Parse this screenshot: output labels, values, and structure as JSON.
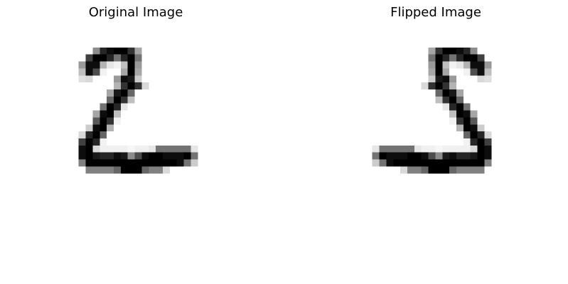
{
  "figure": {
    "original_title": "Original Image",
    "flipped_title": "Flipped Image"
  },
  "image": {
    "rows": 28,
    "cols": 28,
    "colormap": "gray_r",
    "flip": "horizontal",
    "pixels": [
      [
        0,
        0,
        0,
        0,
        0,
        0,
        0,
        0,
        0,
        0,
        0,
        0,
        0,
        0,
        0,
        0,
        0,
        0,
        0,
        0,
        0,
        0,
        0,
        0,
        0,
        0,
        0,
        0
      ],
      [
        0,
        0,
        0,
        0,
        0,
        0,
        0,
        0,
        0,
        0,
        0,
        0,
        0,
        0,
        0,
        0,
        0,
        0,
        0,
        0,
        0,
        0,
        0,
        0,
        0,
        0,
        0,
        0
      ],
      [
        0,
        0,
        0,
        0,
        0,
        0,
        0,
        0,
        0,
        0,
        0,
        0,
        0,
        0,
        0,
        0,
        0,
        0,
        0,
        0,
        0,
        0,
        0,
        0,
        0,
        0,
        0,
        0
      ],
      [
        0,
        0,
        0,
        0,
        0,
        0,
        0,
        0,
        0,
        0,
        0,
        0,
        0,
        0,
        0,
        0,
        0,
        0,
        0,
        0,
        0,
        0,
        0,
        0,
        0,
        0,
        0,
        0
      ],
      [
        0,
        0,
        0,
        0,
        0,
        0,
        0,
        0,
        0,
        0,
        0,
        0,
        0,
        0,
        0,
        0,
        0,
        0,
        0,
        0,
        0,
        0,
        0,
        0,
        0,
        0,
        0,
        0
      ],
      [
        0,
        0,
        0,
        0,
        0,
        0,
        0,
        0,
        0,
        0,
        0,
        0,
        0,
        0,
        0,
        0,
        0,
        0,
        0,
        0,
        0,
        0,
        0,
        0,
        0,
        0,
        0,
        0
      ],
      [
        0,
        0,
        0,
        0,
        0,
        0,
        0,
        0,
        0,
        0,
        0,
        0,
        0,
        0,
        0,
        0,
        0,
        0,
        0,
        0,
        0,
        0,
        0,
        0,
        0,
        0,
        0,
        0
      ],
      [
        0,
        0,
        0,
        0,
        0,
        0,
        0,
        0,
        0,
        0,
        0,
        0,
        0,
        0,
        0,
        0,
        0,
        0,
        0,
        0,
        0,
        0,
        0,
        0,
        0,
        0,
        0,
        0
      ],
      [
        0,
        0,
        0,
        0,
        0,
        0,
        0,
        0,
        0,
        0,
        0,
        0,
        0,
        0,
        0,
        0,
        0,
        0,
        0,
        0,
        0,
        0,
        0,
        0,
        0,
        0,
        0,
        0
      ],
      [
        0,
        0,
        0,
        0,
        0,
        0,
        0,
        0,
        0,
        0,
        0,
        0,
        0,
        0,
        0,
        0,
        0,
        0,
        0,
        0,
        0,
        0,
        0,
        0,
        0,
        0,
        0,
        0
      ],
      [
        0,
        0,
        0,
        0,
        0,
        0,
        0,
        0,
        0,
        0,
        0,
        0,
        0,
        0,
        0,
        0,
        0,
        0,
        0,
        0,
        0,
        0,
        0,
        0,
        0,
        0,
        0,
        0
      ],
      [
        0,
        0,
        0,
        0,
        0,
        0,
        0,
        0,
        0,
        0,
        0,
        0,
        0,
        0,
        0,
        0,
        0,
        0,
        0,
        0,
        0,
        0,
        0,
        0,
        0,
        0,
        0,
        0
      ],
      [
        0,
        0,
        0,
        0,
        0,
        0,
        0,
        0,
        0,
        0,
        0,
        0,
        0,
        0,
        0,
        0,
        0,
        0,
        0,
        0,
        0,
        0,
        0,
        0,
        0,
        0,
        0,
        0
      ],
      [
        0,
        0,
        0,
        0,
        0,
        0,
        0,
        0,
        0,
        0,
        0,
        0,
        0,
        0,
        0,
        0,
        0,
        0,
        0,
        0,
        0,
        0,
        0,
        0,
        0,
        0,
        0,
        0
      ],
      [
        0,
        0,
        0,
        0,
        0,
        0,
        0,
        0,
        0,
        0,
        0,
        0,
        0,
        0,
        0,
        0,
        0,
        0,
        0,
        0,
        0,
        0,
        0,
        0,
        0,
        0,
        0,
        0
      ],
      [
        0,
        0,
        0,
        0,
        0,
        0,
        0,
        0,
        0,
        0,
        0,
        0,
        0,
        0,
        0,
        0,
        0,
        0,
        0,
        0,
        0,
        0,
        0,
        0,
        0,
        0,
        0,
        0
      ],
      [
        0,
        0,
        0,
        0,
        0,
        0,
        0,
        0,
        0,
        0,
        0,
        0,
        0,
        0,
        0,
        0,
        0,
        0,
        0,
        0,
        0,
        0,
        0,
        0,
        0,
        0,
        0,
        0
      ],
      [
        0,
        0,
        0,
        0,
        0,
        0,
        0,
        0,
        0,
        0,
        0,
        0,
        0,
        0,
        0,
        0,
        0,
        0,
        0,
        0,
        0,
        0,
        0,
        0,
        0,
        0,
        0,
        0
      ],
      [
        0,
        0,
        0,
        0,
        0,
        0,
        0,
        0,
        0,
        0,
        0,
        0,
        0,
        0,
        0,
        0,
        0,
        0,
        0,
        0,
        0,
        0,
        0,
        0,
        0,
        0,
        0,
        0
      ],
      [
        0,
        0,
        0,
        0,
        0,
        0,
        0,
        0,
        0,
        0,
        0,
        0,
        0,
        0,
        0,
        0,
        0,
        0,
        0,
        0,
        0,
        0,
        0,
        0,
        0,
        0,
        0,
        0
      ],
      [
        0,
        0,
        0,
        0,
        0,
        0,
        0,
        0,
        0,
        0,
        0,
        0,
        0,
        0,
        0,
        0,
        0,
        0,
        0,
        0,
        0,
        0,
        0,
        0,
        0,
        0,
        0,
        0
      ],
      [
        0,
        0,
        0,
        0,
        0,
        0,
        0,
        0,
        0,
        0,
        0,
        0,
        0,
        0,
        0,
        0,
        0,
        0,
        0,
        0,
        0,
        0,
        0,
        0,
        0,
        0,
        0,
        0
      ],
      [
        0,
        0,
        0,
        0,
        0,
        0,
        0,
        0,
        0,
        0,
        0,
        0,
        0,
        0,
        0,
        0,
        0,
        0,
        0,
        0,
        0,
        0,
        0,
        0,
        0,
        0,
        0,
        0
      ],
      [
        0,
        0,
        0,
        0,
        0,
        0,
        0,
        0,
        0,
        0,
        0,
        0,
        0,
        0,
        0,
        0,
        0,
        0,
        0,
        0,
        0,
        0,
        0,
        0,
        0,
        0,
        0,
        0
      ],
      [
        0,
        0,
        0,
        0,
        0,
        0,
        0,
        0,
        0,
        0,
        0,
        0,
        0,
        0,
        0,
        0,
        0,
        0,
        0,
        0,
        0,
        0,
        0,
        0,
        0,
        0,
        0,
        0
      ],
      [
        0,
        0,
        0,
        0,
        0,
        0,
        0,
        0,
        0,
        0,
        0,
        0,
        0,
        0,
        0,
        0,
        0,
        0,
        0,
        0,
        0,
        0,
        0,
        0,
        0,
        0,
        0,
        0
      ],
      [
        0,
        0,
        0,
        0,
        0,
        0,
        0,
        0,
        0,
        0,
        0,
        0,
        0,
        0,
        0,
        0,
        0,
        0,
        0,
        0,
        0,
        0,
        0,
        0,
        0,
        0,
        0,
        0
      ],
      [
        0,
        0,
        0,
        0,
        0,
        0,
        0,
        0,
        0,
        0,
        0,
        0,
        0,
        0,
        0,
        0,
        0,
        0,
        0,
        0,
        0,
        0,
        0,
        0,
        0,
        0,
        0,
        0
      ]
    ]
  }
}
